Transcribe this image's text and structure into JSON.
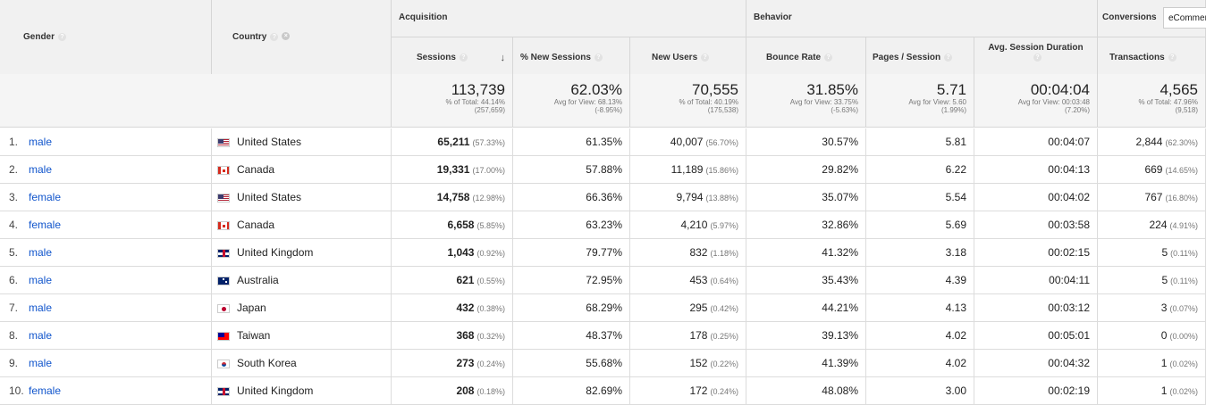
{
  "headers": {
    "gender": "Gender",
    "country": "Country",
    "acquisition": "Acquisition",
    "behavior": "Behavior",
    "conversions": "Conversions",
    "conversions_select": "eCommerce",
    "sessions": "Sessions",
    "new_sessions": "% New Sessions",
    "new_users": "New Users",
    "bounce_rate": "Bounce Rate",
    "pages_session": "Pages / Session",
    "avg_duration": "Avg. Session Duration",
    "transactions": "Transactions"
  },
  "totals": {
    "sessions": {
      "big": "113,739",
      "l1": "% of Total: 44.14%",
      "l2": "(257,659)"
    },
    "new_sessions": {
      "big": "62.03%",
      "l1": "Avg for View: 68.13%",
      "l2": "(-8.95%)"
    },
    "new_users": {
      "big": "70,555",
      "l1": "% of Total: 40.19%",
      "l2": "(175,538)"
    },
    "bounce_rate": {
      "big": "31.85%",
      "l1": "Avg for View: 33.75%",
      "l2": "(-5.63%)"
    },
    "pages_session": {
      "big": "5.71",
      "l1": "Avg for View: 5.60",
      "l2": "(1.99%)"
    },
    "avg_duration": {
      "big": "00:04:04",
      "l1": "Avg for View: 00:03:48",
      "l2": "(7.20%)"
    },
    "transactions": {
      "big": "4,565",
      "l1": "% of Total: 47.96%",
      "l2": "(9,518)"
    }
  },
  "rows": [
    {
      "idx": "1.",
      "gender": "male",
      "flag": "us",
      "country": "United States",
      "sessions": "65,211",
      "sessions_pct": "(57.33%)",
      "new_sessions": "61.35%",
      "new_users": "40,007",
      "new_users_pct": "(56.70%)",
      "bounce": "30.57%",
      "pages": "5.81",
      "duration": "00:04:07",
      "trans": "2,844",
      "trans_pct": "(62.30%)"
    },
    {
      "idx": "2.",
      "gender": "male",
      "flag": "ca",
      "country": "Canada",
      "sessions": "19,331",
      "sessions_pct": "(17.00%)",
      "new_sessions": "57.88%",
      "new_users": "11,189",
      "new_users_pct": "(15.86%)",
      "bounce": "29.82%",
      "pages": "6.22",
      "duration": "00:04:13",
      "trans": "669",
      "trans_pct": "(14.65%)"
    },
    {
      "idx": "3.",
      "gender": "female",
      "flag": "us",
      "country": "United States",
      "sessions": "14,758",
      "sessions_pct": "(12.98%)",
      "new_sessions": "66.36%",
      "new_users": "9,794",
      "new_users_pct": "(13.88%)",
      "bounce": "35.07%",
      "pages": "5.54",
      "duration": "00:04:02",
      "trans": "767",
      "trans_pct": "(16.80%)"
    },
    {
      "idx": "4.",
      "gender": "female",
      "flag": "ca",
      "country": "Canada",
      "sessions": "6,658",
      "sessions_pct": "(5.85%)",
      "new_sessions": "63.23%",
      "new_users": "4,210",
      "new_users_pct": "(5.97%)",
      "bounce": "32.86%",
      "pages": "5.69",
      "duration": "00:03:58",
      "trans": "224",
      "trans_pct": "(4.91%)"
    },
    {
      "idx": "5.",
      "gender": "male",
      "flag": "uk",
      "country": "United Kingdom",
      "sessions": "1,043",
      "sessions_pct": "(0.92%)",
      "new_sessions": "79.77%",
      "new_users": "832",
      "new_users_pct": "(1.18%)",
      "bounce": "41.32%",
      "pages": "3.18",
      "duration": "00:02:15",
      "trans": "5",
      "trans_pct": "(0.11%)"
    },
    {
      "idx": "6.",
      "gender": "male",
      "flag": "au",
      "country": "Australia",
      "sessions": "621",
      "sessions_pct": "(0.55%)",
      "new_sessions": "72.95%",
      "new_users": "453",
      "new_users_pct": "(0.64%)",
      "bounce": "35.43%",
      "pages": "4.39",
      "duration": "00:04:11",
      "trans": "5",
      "trans_pct": "(0.11%)"
    },
    {
      "idx": "7.",
      "gender": "male",
      "flag": "jp",
      "country": "Japan",
      "sessions": "432",
      "sessions_pct": "(0.38%)",
      "new_sessions": "68.29%",
      "new_users": "295",
      "new_users_pct": "(0.42%)",
      "bounce": "44.21%",
      "pages": "4.13",
      "duration": "00:03:12",
      "trans": "3",
      "trans_pct": "(0.07%)"
    },
    {
      "idx": "8.",
      "gender": "male",
      "flag": "tw",
      "country": "Taiwan",
      "sessions": "368",
      "sessions_pct": "(0.32%)",
      "new_sessions": "48.37%",
      "new_users": "178",
      "new_users_pct": "(0.25%)",
      "bounce": "39.13%",
      "pages": "4.02",
      "duration": "00:05:01",
      "trans": "0",
      "trans_pct": "(0.00%)"
    },
    {
      "idx": "9.",
      "gender": "male",
      "flag": "kr",
      "country": "South Korea",
      "sessions": "273",
      "sessions_pct": "(0.24%)",
      "new_sessions": "55.68%",
      "new_users": "152",
      "new_users_pct": "(0.22%)",
      "bounce": "41.39%",
      "pages": "4.02",
      "duration": "00:04:32",
      "trans": "1",
      "trans_pct": "(0.02%)"
    },
    {
      "idx": "10.",
      "gender": "female",
      "flag": "uk",
      "country": "United Kingdom",
      "sessions": "208",
      "sessions_pct": "(0.18%)",
      "new_sessions": "82.69%",
      "new_users": "172",
      "new_users_pct": "(0.24%)",
      "bounce": "48.08%",
      "pages": "3.00",
      "duration": "00:02:19",
      "trans": "1",
      "trans_pct": "(0.02%)"
    }
  ]
}
